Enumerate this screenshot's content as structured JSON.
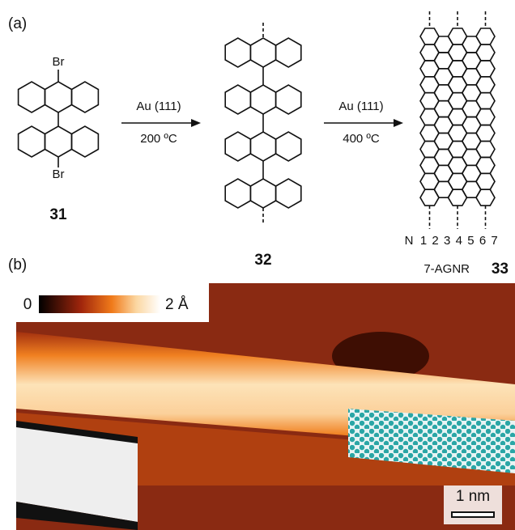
{
  "panel_a": {
    "label": "(a)",
    "monomer": {
      "substituents": [
        "Br",
        "Br"
      ],
      "label": "31"
    },
    "steps": [
      {
        "reagent": "Au (111)",
        "condition": "200 ºC"
      },
      {
        "reagent": "Au (111)",
        "condition": "400 ºC"
      }
    ],
    "polymer": {
      "label": "32"
    },
    "ribbon": {
      "row_prefix": "N",
      "row_numbers": [
        1,
        2,
        3,
        4,
        5,
        6,
        7
      ],
      "name": "7-AGNR",
      "label": "33"
    }
  },
  "panel_b": {
    "label": "(b)",
    "colorbar": {
      "min_label": "0",
      "max_label": "2 Å"
    },
    "scale_bar": "1 nm"
  }
}
